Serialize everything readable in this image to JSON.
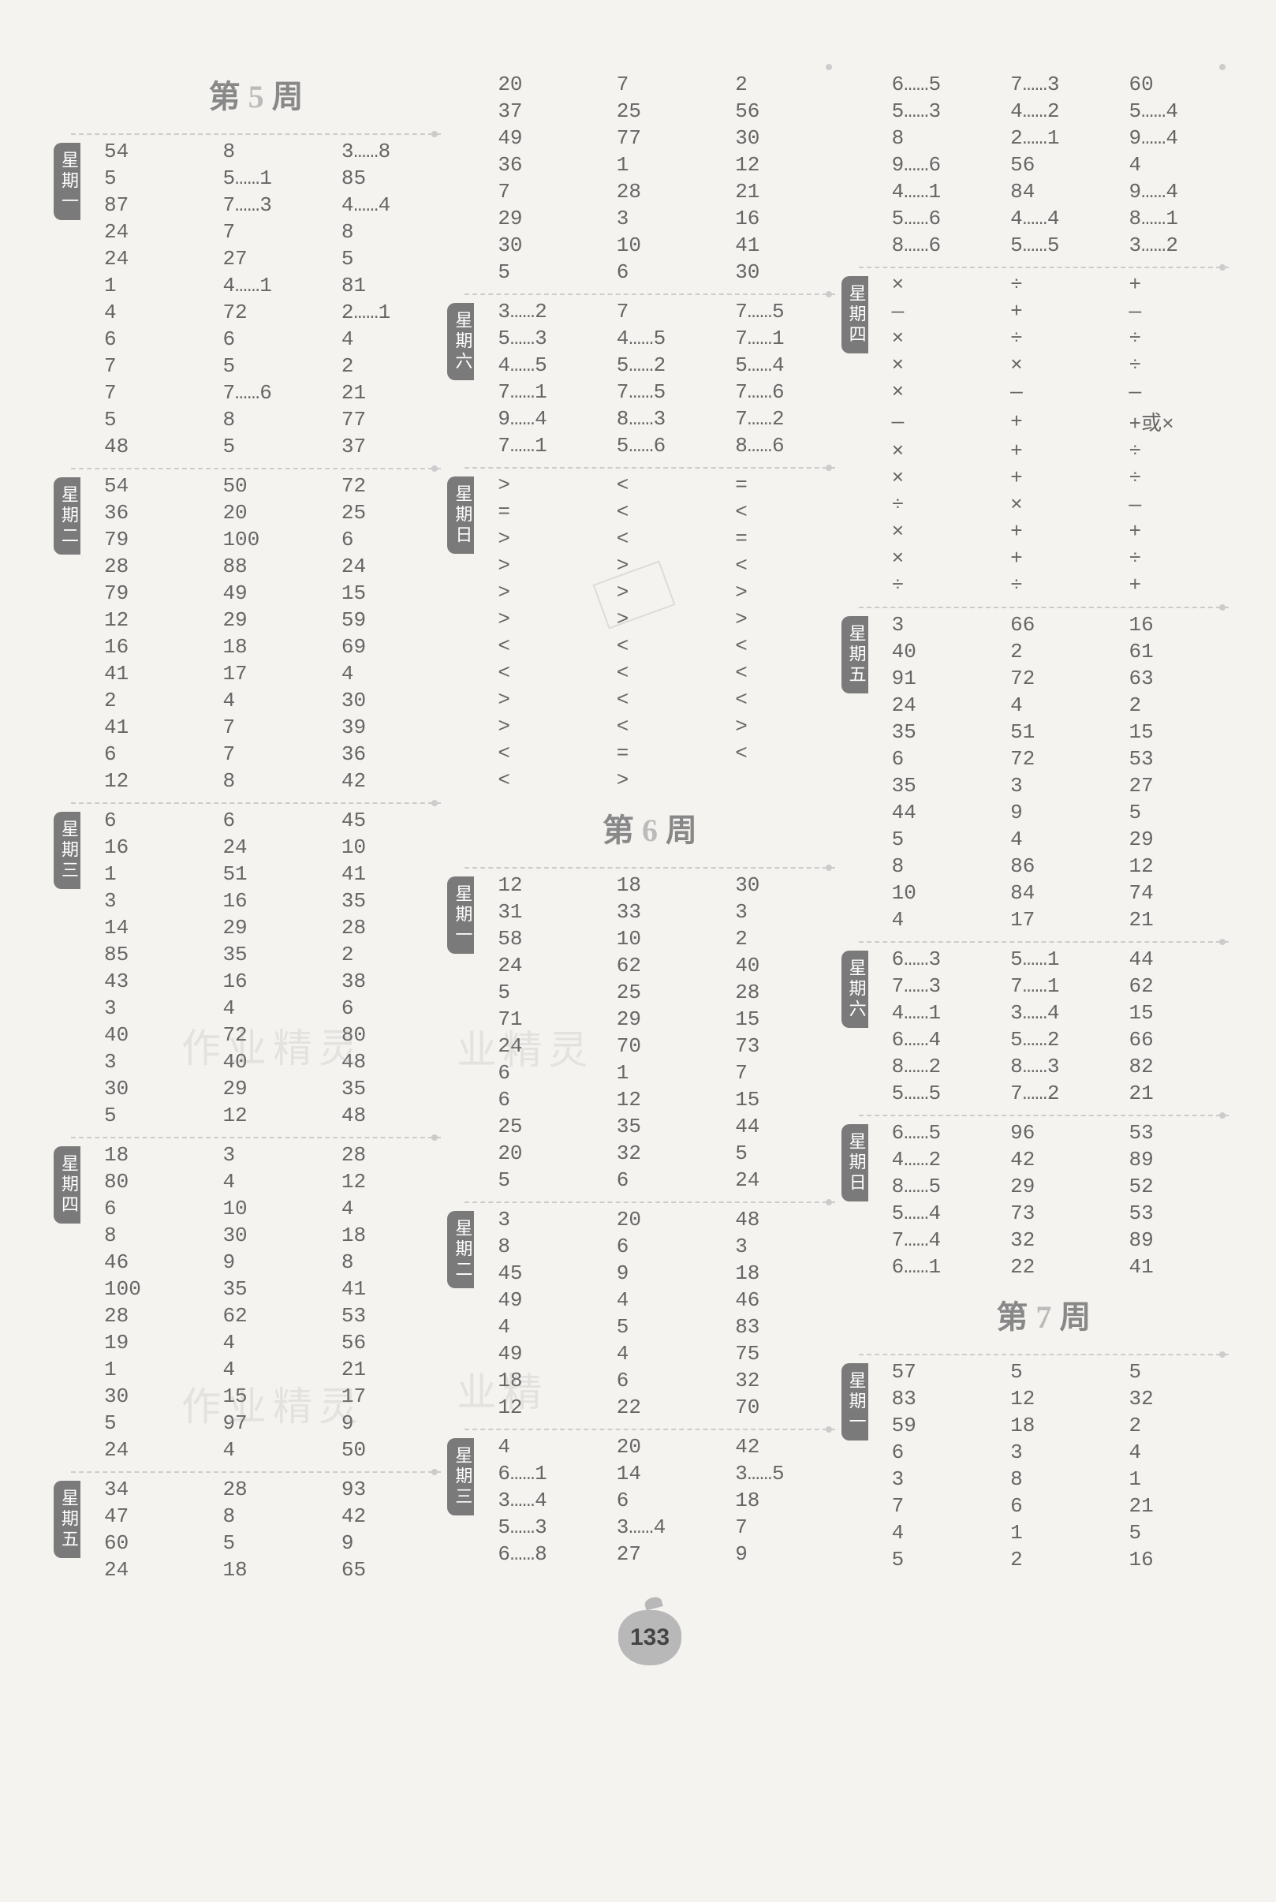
{
  "page_number": "133",
  "weeks": {
    "w5": {
      "label_pre": "第 ",
      "num": "5",
      "label_post": " 周"
    },
    "w6": {
      "label_pre": "第 ",
      "num": "6",
      "label_post": " 周"
    },
    "w7": {
      "label_pre": "第 ",
      "num": "7",
      "label_post": " 周"
    }
  },
  "days": {
    "d1": "星期一",
    "d2": "星期二",
    "d3": "星期三",
    "d4": "星期四",
    "d5": "星期五",
    "d6": "星期六",
    "d7": "星期日"
  },
  "colors": {
    "text": "#666666",
    "tab_bg": "#7a7a7a",
    "divider": "#cccccc",
    "bg": "#f5f3f0",
    "header": "#888888"
  },
  "blocks": {
    "c1_d1": [
      [
        "54",
        "8",
        "3……8"
      ],
      [
        "5",
        "5……1",
        "85"
      ],
      [
        "87",
        "7……3",
        "4……4"
      ],
      [
        "24",
        "7",
        "8"
      ],
      [
        "24",
        "27",
        "5"
      ],
      [
        "1",
        "4……1",
        "81"
      ],
      [
        "4",
        "72",
        "2……1"
      ],
      [
        "6",
        "6",
        "4"
      ],
      [
        "7",
        "5",
        "2"
      ],
      [
        "7",
        "7……6",
        "21"
      ],
      [
        "5",
        "8",
        "77"
      ],
      [
        "48",
        "5",
        "37"
      ]
    ],
    "c1_d2": [
      [
        "54",
        "50",
        "72"
      ],
      [
        "36",
        "20",
        "25"
      ],
      [
        "79",
        "100",
        "6"
      ],
      [
        "28",
        "88",
        "24"
      ],
      [
        "79",
        "49",
        "15"
      ],
      [
        "12",
        "29",
        "59"
      ],
      [
        "16",
        "18",
        "69"
      ],
      [
        "41",
        "17",
        "4"
      ],
      [
        "2",
        "4",
        "30"
      ],
      [
        "41",
        "7",
        "39"
      ],
      [
        "6",
        "7",
        "36"
      ],
      [
        "12",
        "8",
        "42"
      ]
    ],
    "c1_d3": [
      [
        "6",
        "6",
        "45"
      ],
      [
        "16",
        "24",
        "10"
      ],
      [
        "1",
        "51",
        "41"
      ],
      [
        "3",
        "16",
        "35"
      ],
      [
        "14",
        "29",
        "28"
      ],
      [
        "85",
        "35",
        "2"
      ],
      [
        "43",
        "16",
        "38"
      ],
      [
        "3",
        "4",
        "6"
      ],
      [
        "40",
        "72",
        "80"
      ],
      [
        "3",
        "40",
        "48"
      ],
      [
        "30",
        "29",
        "35"
      ],
      [
        "5",
        "12",
        "48"
      ]
    ],
    "c1_d4": [
      [
        "18",
        "3",
        "28"
      ],
      [
        "80",
        "4",
        "12"
      ],
      [
        "6",
        "10",
        "4"
      ],
      [
        "8",
        "30",
        "18"
      ],
      [
        "46",
        "9",
        "8"
      ],
      [
        "100",
        "35",
        "41"
      ],
      [
        "28",
        "62",
        "53"
      ],
      [
        "19",
        "4",
        "56"
      ],
      [
        "1",
        "4",
        "21"
      ],
      [
        "30",
        "15",
        "17"
      ],
      [
        "5",
        "97",
        "9"
      ],
      [
        "24",
        "4",
        "50"
      ]
    ],
    "c1_d5": [
      [
        "34",
        "28",
        "93"
      ],
      [
        "47",
        "8",
        "42"
      ],
      [
        "60",
        "5",
        "9"
      ],
      [
        "24",
        "18",
        "65"
      ]
    ],
    "c2_top": [
      [
        "20",
        "7",
        "2"
      ],
      [
        "37",
        "25",
        "56"
      ],
      [
        "49",
        "77",
        "30"
      ],
      [
        "36",
        "1",
        "12"
      ],
      [
        "7",
        "28",
        "21"
      ],
      [
        "29",
        "3",
        "16"
      ],
      [
        "30",
        "10",
        "41"
      ],
      [
        "5",
        "6",
        "30"
      ]
    ],
    "c2_d6": [
      [
        "3……2",
        "7",
        "7……5"
      ],
      [
        "5……3",
        "4……5",
        "7……1"
      ],
      [
        "4……5",
        "5……2",
        "5……4"
      ],
      [
        "7……1",
        "7……5",
        "7……6"
      ],
      [
        "9……4",
        "8……3",
        "7……2"
      ],
      [
        "7……1",
        "5……6",
        "8……6"
      ]
    ],
    "c2_d7": [
      [
        ">",
        "<",
        "="
      ],
      [
        "=",
        "<",
        "<"
      ],
      [
        ">",
        "<",
        "="
      ],
      [
        ">",
        ">",
        "<"
      ],
      [
        ">",
        ">",
        ">"
      ],
      [
        ">",
        ">",
        ">"
      ],
      [
        "<",
        "<",
        "<"
      ],
      [
        "<",
        "<",
        "<"
      ],
      [
        ">",
        "<",
        "<"
      ],
      [
        ">",
        "<",
        ">"
      ],
      [
        "<",
        "=",
        "<"
      ],
      [
        "<",
        ">",
        ""
      ]
    ],
    "c2_w6_d1": [
      [
        "12",
        "18",
        "30"
      ],
      [
        "31",
        "33",
        "3"
      ],
      [
        "58",
        "10",
        "2"
      ],
      [
        "24",
        "62",
        "40"
      ],
      [
        "5",
        "25",
        "28"
      ],
      [
        "71",
        "29",
        "15"
      ],
      [
        "24",
        "70",
        "73"
      ],
      [
        "6",
        "1",
        "7"
      ],
      [
        "6",
        "12",
        "15"
      ],
      [
        "25",
        "35",
        "44"
      ],
      [
        "20",
        "32",
        "5"
      ],
      [
        "5",
        "6",
        "24"
      ]
    ],
    "c2_w6_d2": [
      [
        "3",
        "20",
        "48"
      ],
      [
        "8",
        "6",
        "3"
      ],
      [
        "45",
        "9",
        "18"
      ],
      [
        "49",
        "4",
        "46"
      ],
      [
        "4",
        "5",
        "83"
      ],
      [
        "49",
        "4",
        "75"
      ],
      [
        "18",
        "6",
        "32"
      ],
      [
        "12",
        "22",
        "70"
      ]
    ],
    "c2_w6_d3": [
      [
        "4",
        "20",
        "42"
      ],
      [
        "6……1",
        "14",
        "3……5"
      ],
      [
        "3……4",
        "6",
        "18"
      ],
      [
        "5……3",
        "3……4",
        "7"
      ],
      [
        "6……8",
        "27",
        "9"
      ]
    ],
    "c3_top": [
      [
        "6……5",
        "7……3",
        "60"
      ],
      [
        "5……3",
        "4……2",
        "5……4"
      ],
      [
        "8",
        "2……1",
        "9……4"
      ],
      [
        "9……6",
        "56",
        "4"
      ],
      [
        "4……1",
        "84",
        "9……4"
      ],
      [
        "5……6",
        "4……4",
        "8……1"
      ],
      [
        "8……6",
        "5……5",
        "3……2"
      ]
    ],
    "c3_d4": [
      [
        "×",
        "÷",
        "+"
      ],
      [
        "—",
        "+",
        "—"
      ],
      [
        "×",
        "÷",
        "÷"
      ],
      [
        "×",
        "×",
        "÷"
      ],
      [
        "×",
        "—",
        "—"
      ],
      [
        "—",
        "+",
        "+或×"
      ],
      [
        "×",
        "+",
        "÷"
      ],
      [
        "×",
        "+",
        "÷"
      ],
      [
        "÷",
        "×",
        "—"
      ],
      [
        "×",
        "+",
        "+"
      ],
      [
        "×",
        "+",
        "÷"
      ],
      [
        "÷",
        "÷",
        "+"
      ]
    ],
    "c3_d5": [
      [
        "3",
        "66",
        "16"
      ],
      [
        "40",
        "2",
        "61"
      ],
      [
        "91",
        "72",
        "63"
      ],
      [
        "24",
        "4",
        "2"
      ],
      [
        "35",
        "51",
        "15"
      ],
      [
        "6",
        "72",
        "53"
      ],
      [
        "35",
        "3",
        "27"
      ],
      [
        "44",
        "9",
        "5"
      ],
      [
        "5",
        "4",
        "29"
      ],
      [
        "8",
        "86",
        "12"
      ],
      [
        "10",
        "84",
        "74"
      ],
      [
        "4",
        "17",
        "21"
      ]
    ],
    "c3_d6": [
      [
        "6……3",
        "5……1",
        "44"
      ],
      [
        "7……3",
        "7……1",
        "62"
      ],
      [
        "4……1",
        "3……4",
        "15"
      ],
      [
        "6……4",
        "5……2",
        "66"
      ],
      [
        "8……2",
        "8……3",
        "82"
      ],
      [
        "5……5",
        "7……2",
        "21"
      ]
    ],
    "c3_d7": [
      [
        "6……5",
        "96",
        "53"
      ],
      [
        "4……2",
        "42",
        "89"
      ],
      [
        "8……5",
        "29",
        "52"
      ],
      [
        "5……4",
        "73",
        "53"
      ],
      [
        "7……4",
        "32",
        "89"
      ],
      [
        "6……1",
        "22",
        "41"
      ]
    ],
    "c3_w7_d1": [
      [
        "57",
        "5",
        "5"
      ],
      [
        "83",
        "12",
        "32"
      ],
      [
        "59",
        "18",
        "2"
      ],
      [
        "6",
        "3",
        "4"
      ],
      [
        "3",
        "8",
        "1"
      ],
      [
        "7",
        "6",
        "21"
      ],
      [
        "4",
        "1",
        "5"
      ],
      [
        "5",
        "2",
        "16"
      ]
    ]
  }
}
